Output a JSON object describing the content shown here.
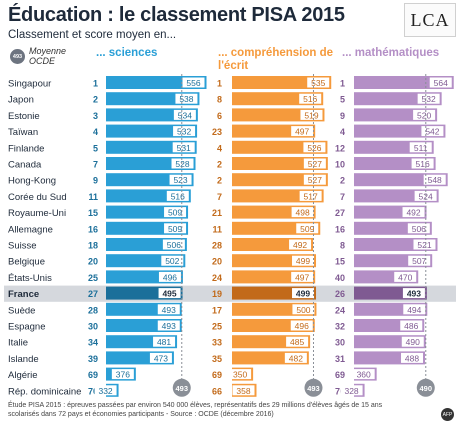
{
  "header": {
    "title": "Éducation : le classement PISA 2015",
    "subtitle": "Classement et score moyen en...",
    "logo_text": "LCA"
  },
  "legend": {
    "badge": "493",
    "text_line1": "Moyenne",
    "text_line2": "OCDE"
  },
  "footer": {
    "line1": "Étude PISA 2015 : épreuves passées par environ 540 000 élèves, représentatifs des 29 millions d'élèves âgés de 15 ans",
    "line2": "scolarisés dans 72 pays et économies participants - Source : OCDE (décembre 2016)",
    "icon_text": "AFP"
  },
  "colors": {
    "sciences": "#2a9fd6",
    "sciences_dark": "#1b6f9a",
    "comprehension": "#f59a3c",
    "comprehension_dark": "#c26a1a",
    "mathematiques": "#b48fc6",
    "mathematiques_dark": "#7f5a92",
    "france_band": "#d5d8dd",
    "avg_badge": "#8a8f97"
  },
  "chart_data": {
    "type": "bar",
    "categories": [
      "Singapour",
      "Japon",
      "Estonie",
      "Taïwan",
      "Finlande",
      "Canada",
      "Hong-Kong",
      "Corée du Sud",
      "Royaume-Uni",
      "Allemagne",
      "Suisse",
      "Belgique",
      "États-Unis",
      "France",
      "Suède",
      "Espagne",
      "Italie",
      "Islande",
      "Algérie",
      "Rép. dominicaine"
    ],
    "highlight": "France",
    "oecd_average": {
      "label": "493",
      "sciences": 493,
      "comprehension": 493,
      "mathematiques": 490
    },
    "series": [
      {
        "name": "... sciences",
        "ranks": [
          1,
          2,
          3,
          4,
          5,
          7,
          9,
          11,
          15,
          16,
          18,
          20,
          25,
          27,
          28,
          30,
          34,
          39,
          69,
          70
        ],
        "values": [
          556,
          538,
          534,
          532,
          531,
          528,
          523,
          516,
          509,
          509,
          506,
          502,
          496,
          495,
          493,
          493,
          481,
          473,
          376,
          332
        ]
      },
      {
        "name": "... compréhension de l'écrit",
        "ranks": [
          1,
          8,
          6,
          23,
          4,
          2,
          2,
          7,
          21,
          11,
          28,
          20,
          24,
          19,
          17,
          25,
          33,
          35,
          69,
          66
        ],
        "values": [
          535,
          516,
          519,
          497,
          526,
          527,
          527,
          517,
          498,
          509,
          492,
          499,
          497,
          499,
          500,
          496,
          485,
          482,
          350,
          358
        ]
      },
      {
        "name": "... mathématiques",
        "ranks": [
          1,
          5,
          9,
          4,
          12,
          10,
          2,
          7,
          27,
          16,
          8,
          15,
          40,
          26,
          24,
          32,
          30,
          31,
          69,
          70
        ],
        "values": [
          564,
          532,
          520,
          542,
          511,
          516,
          548,
          524,
          492,
          506,
          521,
          507,
          470,
          493,
          494,
          486,
          490,
          488,
          360,
          328
        ]
      }
    ]
  }
}
